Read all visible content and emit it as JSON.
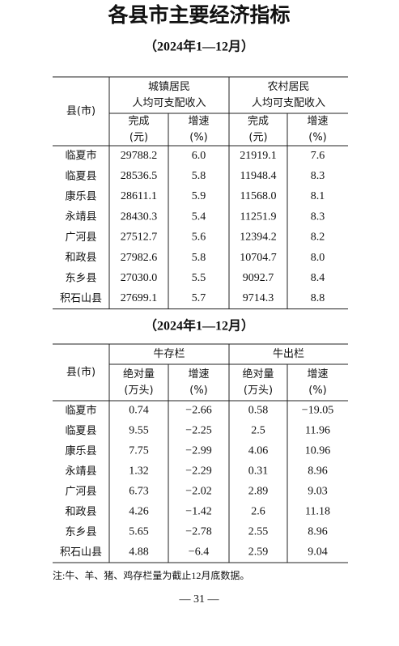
{
  "title": "各县市主要经济指标",
  "subtitle1": "（2024年1—12月）",
  "table1": {
    "corner": "县(市)",
    "groups": [
      [
        "城镇居民",
        "人均可支配收入"
      ],
      [
        "农村居民",
        "人均可支配收入"
      ]
    ],
    "columns": [
      [
        "完成",
        "(元)"
      ],
      [
        "增速",
        "(%)"
      ],
      [
        "完成",
        "(元)"
      ],
      [
        "增速",
        "(%)"
      ]
    ],
    "rows": [
      [
        "临夏市",
        "29788.2",
        "6.0",
        "21919.1",
        "7.6"
      ],
      [
        "临夏县",
        "28536.5",
        "5.8",
        "11948.4",
        "8.3"
      ],
      [
        "康乐县",
        "28611.1",
        "5.9",
        "11568.0",
        "8.1"
      ],
      [
        "永靖县",
        "28430.3",
        "5.4",
        "11251.9",
        "8.3"
      ],
      [
        "广河县",
        "27512.7",
        "5.6",
        "12394.2",
        "8.2"
      ],
      [
        "和政县",
        "27982.6",
        "5.8",
        "10704.7",
        "8.0"
      ],
      [
        "东乡县",
        "27030.0",
        "5.5",
        "9092.7",
        "8.4"
      ],
      [
        "积石山县",
        "27699.1",
        "5.7",
        "9714.3",
        "8.8"
      ]
    ]
  },
  "subtitle2": "（2024年1—12月）",
  "table2": {
    "corner": "县(市)",
    "groups": [
      [
        "牛存栏"
      ],
      [
        "牛出栏"
      ]
    ],
    "columns": [
      [
        "绝对量",
        "(万头)"
      ],
      [
        "增速",
        "(%)"
      ],
      [
        "绝对量",
        "(万头)"
      ],
      [
        "增速",
        "(%)"
      ]
    ],
    "rows": [
      [
        "临夏市",
        "0.74",
        "−2.66",
        "0.58",
        "−19.05"
      ],
      [
        "临夏县",
        "9.55",
        "−2.25",
        "2.5",
        "11.96"
      ],
      [
        "康乐县",
        "7.75",
        "−2.99",
        "4.06",
        "10.96"
      ],
      [
        "永靖县",
        "1.32",
        "−2.29",
        "0.31",
        "8.96"
      ],
      [
        "广河县",
        "6.73",
        "−2.02",
        "2.89",
        "9.03"
      ],
      [
        "和政县",
        "4.26",
        "−1.42",
        "2.6",
        "11.18"
      ],
      [
        "东乡县",
        "5.65",
        "−2.78",
        "2.55",
        "8.96"
      ],
      [
        "积石山县",
        "4.88",
        "−6.4",
        "2.59",
        "9.04"
      ]
    ]
  },
  "note": "注:牛、羊、猪、鸡存栏量为截止12月底数据。",
  "page_number": "— 31 —"
}
